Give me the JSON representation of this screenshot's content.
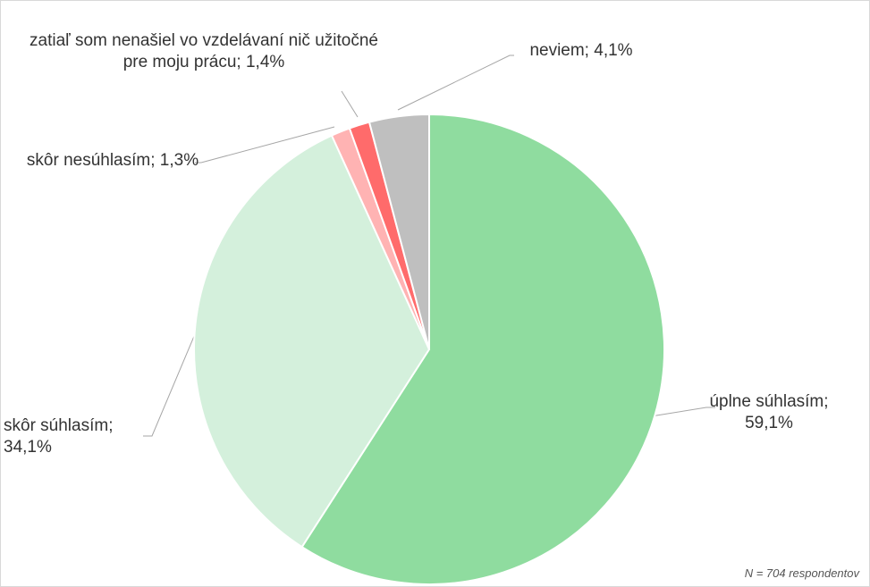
{
  "chart_data": {
    "type": "pie",
    "categories": [
      "úplne súhlasím;",
      "skôr súhlasím;",
      "skôr nesúhlasím;",
      "zatiaľ som nenašiel vo vzdelávaní nič užitočné pre moju prácu;",
      "neviem;"
    ],
    "values": [
      59.1,
      34.1,
      1.3,
      1.4,
      4.1
    ],
    "value_labels": [
      "59,1%",
      "34,1%",
      "1,3%",
      "1,4%",
      "4,1%"
    ],
    "colors": [
      "#8fdc9f",
      "#d4f0dc",
      "#ffb3b3",
      "#ff6b6b",
      "#bfbfbf"
    ],
    "note": "N = 704 respondentov"
  }
}
